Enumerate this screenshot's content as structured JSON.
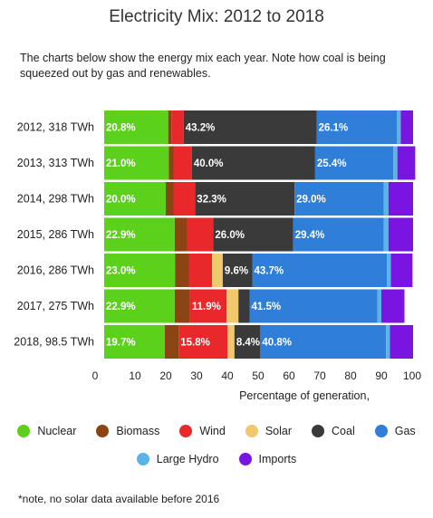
{
  "title": "Electricity Mix: 2012 to 2018",
  "subtitle": "The charts below show the energy mix each year. Note how coal is being squeezed out by gas and renewables.",
  "footnote": "*note, no solar data available before 2016",
  "chart_data": {
    "type": "bar",
    "orientation": "horizontal",
    "stacked": true,
    "categories": [
      "2012, 318 TWh",
      "2013, 313 TWh",
      "2014, 298 TWh",
      "2015, 286 TWh",
      "2016, 286 TWh",
      "2017, 275 TWh",
      "2018, 98.5 TWh"
    ],
    "series": [
      {
        "name": "Nuclear",
        "color": "#5cd11b",
        "values": [
          20.8,
          21.0,
          20.0,
          22.9,
          23.0,
          22.9,
          19.7
        ],
        "labels": [
          "20.8%",
          "21.0%",
          "20.0%",
          "22.9%",
          "23.0%",
          "22.9%",
          "19.7%"
        ]
      },
      {
        "name": "Biomass",
        "color": "#8b4513",
        "values": [
          1.0,
          1.5,
          2.5,
          4.0,
          4.5,
          5.0,
          4.5
        ],
        "labels": [
          "",
          "",
          "",
          "",
          "",
          "",
          ""
        ]
      },
      {
        "name": "Wind",
        "color": "#e8282b",
        "values": [
          4.0,
          6.0,
          7.0,
          8.5,
          7.5,
          11.9,
          15.8
        ],
        "labels": [
          "",
          "",
          "",
          "",
          "",
          "11.9%",
          "15.8%"
        ]
      },
      {
        "name": "Solar",
        "color": "#f0c86e",
        "values": [
          0,
          0,
          0,
          0,
          3.5,
          3.8,
          2.3
        ],
        "labels": [
          "",
          "",
          "",
          "",
          "",
          "",
          ""
        ]
      },
      {
        "name": "Coal",
        "color": "#3a3a3a",
        "values": [
          43.2,
          40.0,
          32.3,
          26.0,
          9.6,
          3.6,
          8.4
        ],
        "labels": [
          "43.2%",
          "40.0%",
          "32.3%",
          "26.0%",
          "9.6%",
          "",
          "8.4%"
        ]
      },
      {
        "name": "Gas",
        "color": "#2f7fd8",
        "values": [
          26.1,
          25.4,
          29.0,
          29.4,
          43.7,
          41.5,
          40.8
        ],
        "labels": [
          "26.1%",
          "25.4%",
          "29.0%",
          "29.4%",
          "43.7%",
          "41.5%",
          "40.8%"
        ]
      },
      {
        "name": "Large Hydro",
        "color": "#5ab4e8",
        "values": [
          1.2,
          1.3,
          1.5,
          1.5,
          1.3,
          1.3,
          1.3
        ],
        "labels": [
          "",
          "",
          "",
          "",
          "",
          "",
          ""
        ]
      },
      {
        "name": "Imports",
        "color": "#7a14e0",
        "values": [
          4.0,
          5.8,
          8.0,
          8.0,
          7.0,
          7.5,
          7.5
        ],
        "labels": [
          "",
          "",
          "",
          "",
          "",
          "",
          ""
        ]
      }
    ],
    "xlabel": "Percentage of generation,",
    "xlim": [
      0,
      100
    ],
    "xticks": [
      0,
      10,
      20,
      30,
      40,
      50,
      60,
      70,
      80,
      90,
      100
    ],
    "legend_position": "bottom"
  },
  "legend": {
    "row1": [
      {
        "name": "Nuclear",
        "color": "#5cd11b"
      },
      {
        "name": "Biomass",
        "color": "#8b4513"
      },
      {
        "name": "Wind",
        "color": "#e8282b"
      },
      {
        "name": "Solar",
        "color": "#f0c86e"
      },
      {
        "name": "Coal",
        "color": "#3a3a3a"
      },
      {
        "name": "Gas",
        "color": "#2f7fd8"
      }
    ],
    "row2": [
      {
        "name": "Large Hydro",
        "color": "#5ab4e8"
      },
      {
        "name": "Imports",
        "color": "#7a14e0"
      }
    ]
  }
}
